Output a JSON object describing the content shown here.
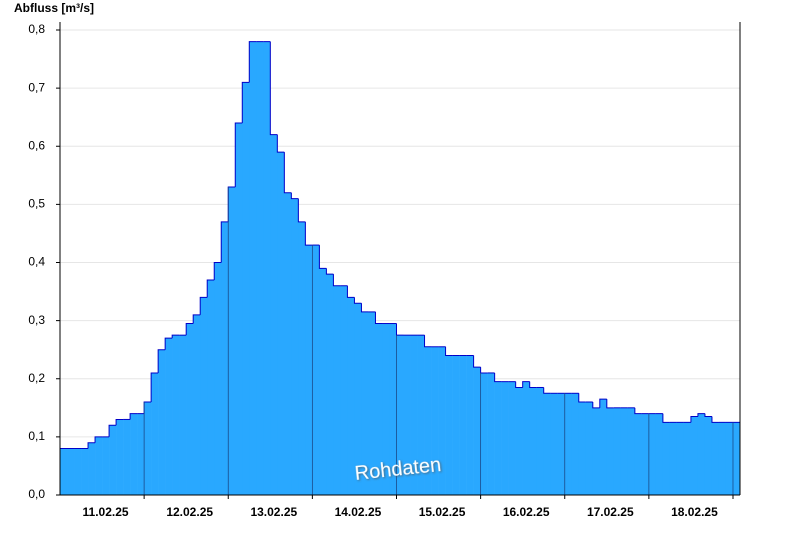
{
  "chart_data": {
    "type": "area",
    "y_label": "Abfluss [m³/s]",
    "annotation": "Rohdaten",
    "x": [
      null,
      null,
      null,
      null,
      null,
      null,
      "11.02.25",
      null,
      null,
      null,
      null,
      null,
      null,
      null,
      null,
      null,
      null,
      null,
      "12.02.25",
      null,
      null,
      null,
      null,
      null,
      null,
      null,
      null,
      null,
      null,
      null,
      "13.02.25",
      null,
      null,
      null,
      null,
      null,
      null,
      null,
      null,
      null,
      null,
      null,
      "14.02.25",
      null,
      null,
      null,
      null,
      null,
      null,
      null,
      null,
      null,
      null,
      null,
      "15.02.25",
      null,
      null,
      null,
      null,
      null,
      null,
      null,
      null,
      null,
      null,
      null,
      "16.02.25",
      null,
      null,
      null,
      null,
      null,
      null,
      null,
      null,
      null,
      null,
      null,
      "17.02.25",
      null,
      null,
      null,
      null,
      null,
      null,
      null,
      null,
      null,
      null,
      null,
      "18.02.25",
      null,
      null,
      null,
      null,
      null,
      null
    ],
    "series": [
      {
        "color": "#29a8ff",
        "values": [
          0.08,
          0.08,
          0.08,
          0.08,
          0.09,
          0.1,
          0.1,
          0.12,
          0.13,
          0.13,
          0.14,
          0.14,
          0.16,
          0.21,
          0.25,
          0.27,
          0.275,
          0.275,
          0.295,
          0.31,
          0.34,
          0.37,
          0.4,
          0.47,
          0.53,
          0.64,
          0.71,
          0.78,
          0.78,
          0.78,
          0.62,
          0.59,
          0.52,
          0.51,
          0.47,
          0.43,
          0.43,
          0.39,
          0.38,
          0.36,
          0.36,
          0.34,
          0.33,
          0.315,
          0.315,
          0.295,
          0.295,
          0.295,
          0.275,
          0.275,
          0.275,
          0.275,
          0.255,
          0.255,
          0.255,
          0.24,
          0.24,
          0.24,
          0.24,
          0.22,
          0.21,
          0.21,
          0.195,
          0.195,
          0.195,
          0.185,
          0.195,
          0.185,
          0.185,
          0.175,
          0.175,
          0.175,
          0.175,
          0.175,
          0.16,
          0.16,
          0.15,
          0.165,
          0.15,
          0.15,
          0.15,
          0.15,
          0.14,
          0.14,
          0.14,
          0.14,
          0.125,
          0.125,
          0.125,
          0.125,
          0.135,
          0.14,
          0.135,
          0.125,
          0.125,
          0.125,
          0.125
        ]
      }
    ],
    "ylim": [
      0,
      0.8
    ],
    "yticks": [
      {
        "value": 0,
        "label": "0,0"
      },
      {
        "value": 0.1,
        "label": "0,1"
      },
      {
        "value": 0.2,
        "label": "0,2"
      },
      {
        "value": 0.3,
        "label": "0,3"
      },
      {
        "value": 0.4,
        "label": "0,4"
      },
      {
        "value": 0.5,
        "label": "0,5"
      },
      {
        "value": 0.6,
        "label": "0,6"
      },
      {
        "value": 0.7,
        "label": "0,7"
      },
      {
        "value": 0.8,
        "label": "0,8"
      }
    ],
    "grid": true,
    "line_color": "#0000c8"
  }
}
